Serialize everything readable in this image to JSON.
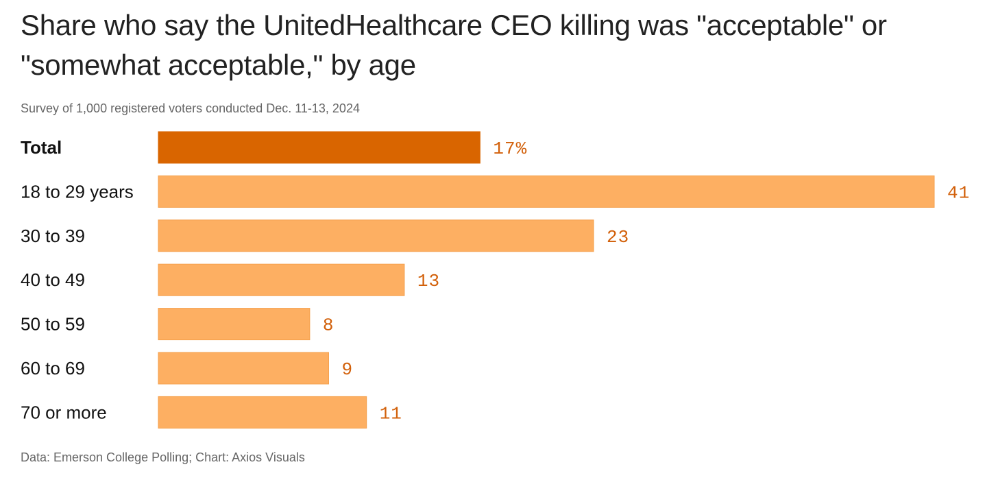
{
  "title": "Share who say the UnitedHealthcare CEO killing was \"acceptable\" or \"somewhat acceptable,\" by age",
  "subtitle": "Survey of 1,000 registered voters conducted Dec. 11-13, 2024",
  "source": "Data: Emerson College Polling; Chart: Axios Visuals",
  "colors": {
    "highlight": "#d96500",
    "bar": "#fdaf62",
    "bar_stroke": "#f5a04c",
    "value_text": "#d2600a"
  },
  "chart_data": {
    "type": "bar",
    "orientation": "horizontal",
    "title": "Share who say the UnitedHealthcare CEO killing was \"acceptable\" or \"somewhat acceptable,\" by age",
    "subtitle": "Survey of 1,000 registered voters conducted Dec. 11-13, 2024",
    "categories": [
      "Total",
      "18 to 29 years",
      "30 to 39",
      "40 to 49",
      "50 to 59",
      "60 to 69",
      "70 or more"
    ],
    "values": [
      17,
      41,
      23,
      13,
      8,
      9,
      11
    ],
    "value_labels": [
      "17%",
      "41",
      "23",
      "13",
      "8",
      "9",
      "11"
    ],
    "highlighted_category": "Total",
    "xlim": [
      0,
      41
    ],
    "grid": false,
    "legend": "none"
  }
}
